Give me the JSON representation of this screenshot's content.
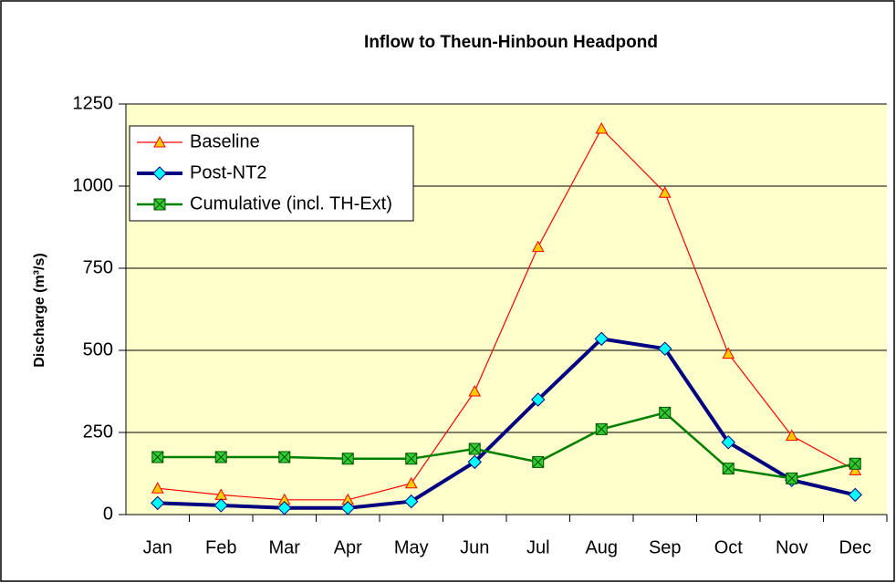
{
  "chart_data": {
    "type": "line",
    "title": "Inflow to Theun-Hinboun Headpond",
    "y_label": "Discharge  (m³/s)",
    "categories": [
      "Jan",
      "Feb",
      "Mar",
      "Apr",
      "May",
      "Jun",
      "Jul",
      "Aug",
      "Sep",
      "Oct",
      "Nov",
      "Dec"
    ],
    "series": [
      {
        "name": "Baseline",
        "color": "#ff0000",
        "marker": "triangle",
        "marker_color": "#ffcc00",
        "values": [
          80,
          60,
          45,
          45,
          95,
          375,
          815,
          1175,
          980,
          490,
          240,
          135
        ]
      },
      {
        "name": "Post-NT2",
        "color": "#000080",
        "marker": "diamond",
        "marker_color": "#00ffff",
        "values": [
          35,
          28,
          20,
          20,
          40,
          160,
          350,
          535,
          505,
          220,
          105,
          60
        ]
      },
      {
        "name": "Cumulative (incl. TH-Ext)",
        "color": "#008000",
        "marker": "square",
        "marker_color": "#33cc33",
        "values": [
          175,
          175,
          175,
          170,
          170,
          200,
          160,
          260,
          310,
          140,
          110,
          155
        ]
      }
    ],
    "ylim": [
      0,
      1250
    ],
    "yticks": [
      0,
      250,
      500,
      750,
      1000,
      1250
    ],
    "grid": true,
    "legend": "upper left",
    "plot_background": "#ffffcc"
  }
}
